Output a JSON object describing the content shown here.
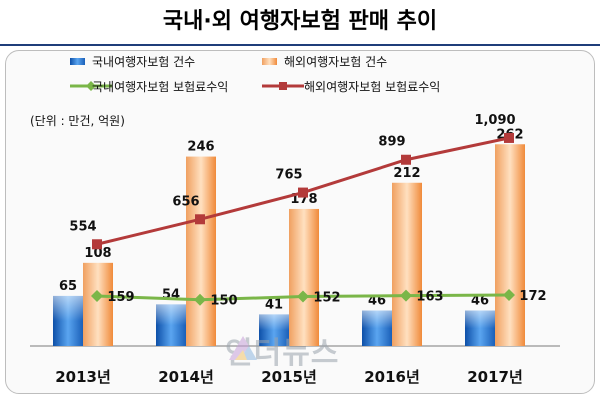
{
  "title": "국내·외 여행자보험 판매 추이",
  "unit_note": "(단위 : 만건, 억원)",
  "watermark": "인더뉴스",
  "colors": {
    "domestic_count": "#1f6fd1",
    "overseas_count": "#f39a4a",
    "domestic_premium": "#7ab648",
    "overseas_premium": "#b33a3a"
  },
  "chart_data": {
    "type": "bar",
    "categories": [
      "2013년",
      "2014년",
      "2015년",
      "2016년",
      "2017년"
    ],
    "series": [
      {
        "name": "국내여행자보험 건수",
        "kind": "bar",
        "values": [
          65,
          54,
          41,
          46,
          46
        ]
      },
      {
        "name": "해외여행자보험 건수",
        "kind": "bar",
        "values": [
          108,
          246,
          178,
          212,
          262
        ]
      },
      {
        "name": "국내여행자보험 보험료수익",
        "kind": "line",
        "values": [
          159,
          150,
          152,
          163,
          172
        ]
      },
      {
        "name": "해외여행자보험 보험료수익",
        "kind": "line",
        "values": [
          554,
          656,
          765,
          899,
          "1,090"
        ]
      }
    ],
    "legend_position": "top"
  }
}
